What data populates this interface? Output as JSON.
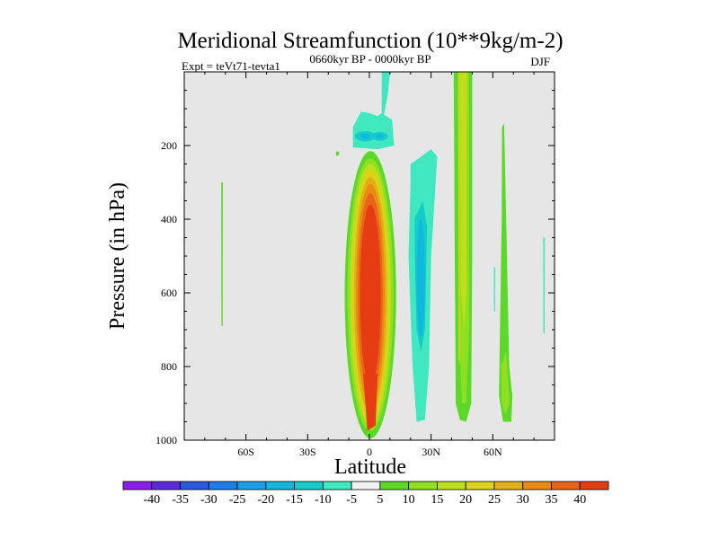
{
  "chart_data": {
    "type": "contour",
    "title": "Meridional Streamfunction (10**9kg/m-2)",
    "subtitle": "0660kyr BP - 0000kyr BP",
    "left_label": "Expt = teVt71-tevta1",
    "right_label": "DJF",
    "xlabel": "Latitude",
    "ylabel": "Pressure (in hPa)",
    "x_range": [
      -90,
      90
    ],
    "y_range": [
      0,
      1000
    ],
    "y_inverted": true,
    "x_ticks": [
      {
        "value": -60,
        "label": "60S"
      },
      {
        "value": -30,
        "label": "30S"
      },
      {
        "value": 0,
        "label": "0"
      },
      {
        "value": 30,
        "label": "30N"
      },
      {
        "value": 60,
        "label": "60N"
      }
    ],
    "y_ticks": [
      {
        "value": 200,
        "label": "200"
      },
      {
        "value": 400,
        "label": "400"
      },
      {
        "value": 600,
        "label": "600"
      },
      {
        "value": 800,
        "label": "800"
      },
      {
        "value": 1000,
        "label": "1000"
      }
    ],
    "background_color": "#e6e6e6",
    "colorbar": {
      "labels": [
        "-40",
        "-35",
        "-30",
        "-25",
        "-20",
        "-15",
        "-10",
        "-5",
        "5",
        "10",
        "15",
        "20",
        "25",
        "30",
        "35",
        "40"
      ],
      "colors": [
        "#8a1ee6",
        "#5a2ad8",
        "#2a5ae0",
        "#1e7ee8",
        "#1e9ee6",
        "#10b8e0",
        "#14cccc",
        "#40e8c0",
        "#f2f2f2",
        "#5cd82a",
        "#8ee020",
        "#bce01a",
        "#dcd21a",
        "#e2b014",
        "#e88a14",
        "#e8641a",
        "#e63c12"
      ]
    },
    "contour_features": [
      {
        "name": "equatorial positive cell",
        "lat_range": [
          -6,
          8
        ],
        "pressure_range": [
          230,
          980
        ],
        "peak_value": 40
      },
      {
        "name": "upper tropospheric negative cell",
        "lat_range": [
          -8,
          12
        ],
        "pressure_range": [
          120,
          210
        ],
        "peak_value": -25
      },
      {
        "name": "northern subtropical negative cell",
        "lat_range": [
          20,
          33
        ],
        "pressure_range": [
          230,
          950
        ],
        "peak_value": -15
      },
      {
        "name": "northern midlatitude positive band",
        "lat_range": [
          42,
          50
        ],
        "pressure_range": [
          0,
          950
        ],
        "peak_value": 20
      },
      {
        "name": "subpolar positive band",
        "lat_range": [
          62,
          70
        ],
        "pressure_range": [
          140,
          950
        ],
        "peak_value": 15
      },
      {
        "name": "southern weak positive line",
        "lat_range": [
          -72,
          -71
        ],
        "pressure_range": [
          300,
          690
        ],
        "peak_value": 5
      }
    ]
  }
}
